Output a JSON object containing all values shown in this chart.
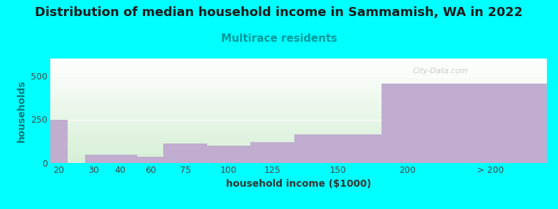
{
  "title": "Distribution of median household income in Sammamish, WA in 2022",
  "subtitle": "Multirace residents",
  "xlabel": "household income ($1000)",
  "ylabel": "households",
  "background_color": "#00FFFF",
  "bar_color": "#C0ADCF",
  "categories": [
    "20",
    "30",
    "40",
    "60",
    "75",
    "100",
    "125",
    "150",
    "200",
    "> 200"
  ],
  "values": [
    248,
    50,
    48,
    38,
    112,
    100,
    122,
    165,
    455,
    455
  ],
  "bar_lefts": [
    10,
    30,
    40,
    60,
    75,
    100,
    125,
    150,
    200,
    230
  ],
  "bar_widths": [
    10,
    10,
    20,
    15,
    25,
    25,
    25,
    50,
    30,
    65
  ],
  "ylim": [
    0,
    600
  ],
  "yticks": [
    0,
    250,
    500
  ],
  "title_fontsize": 13,
  "subtitle_fontsize": 11,
  "label_fontsize": 10,
  "tick_fontsize": 9,
  "watermark": "City-Data.com",
  "grad_top_color": "#ffffff",
  "grad_bottom_color": "#d8efd8"
}
